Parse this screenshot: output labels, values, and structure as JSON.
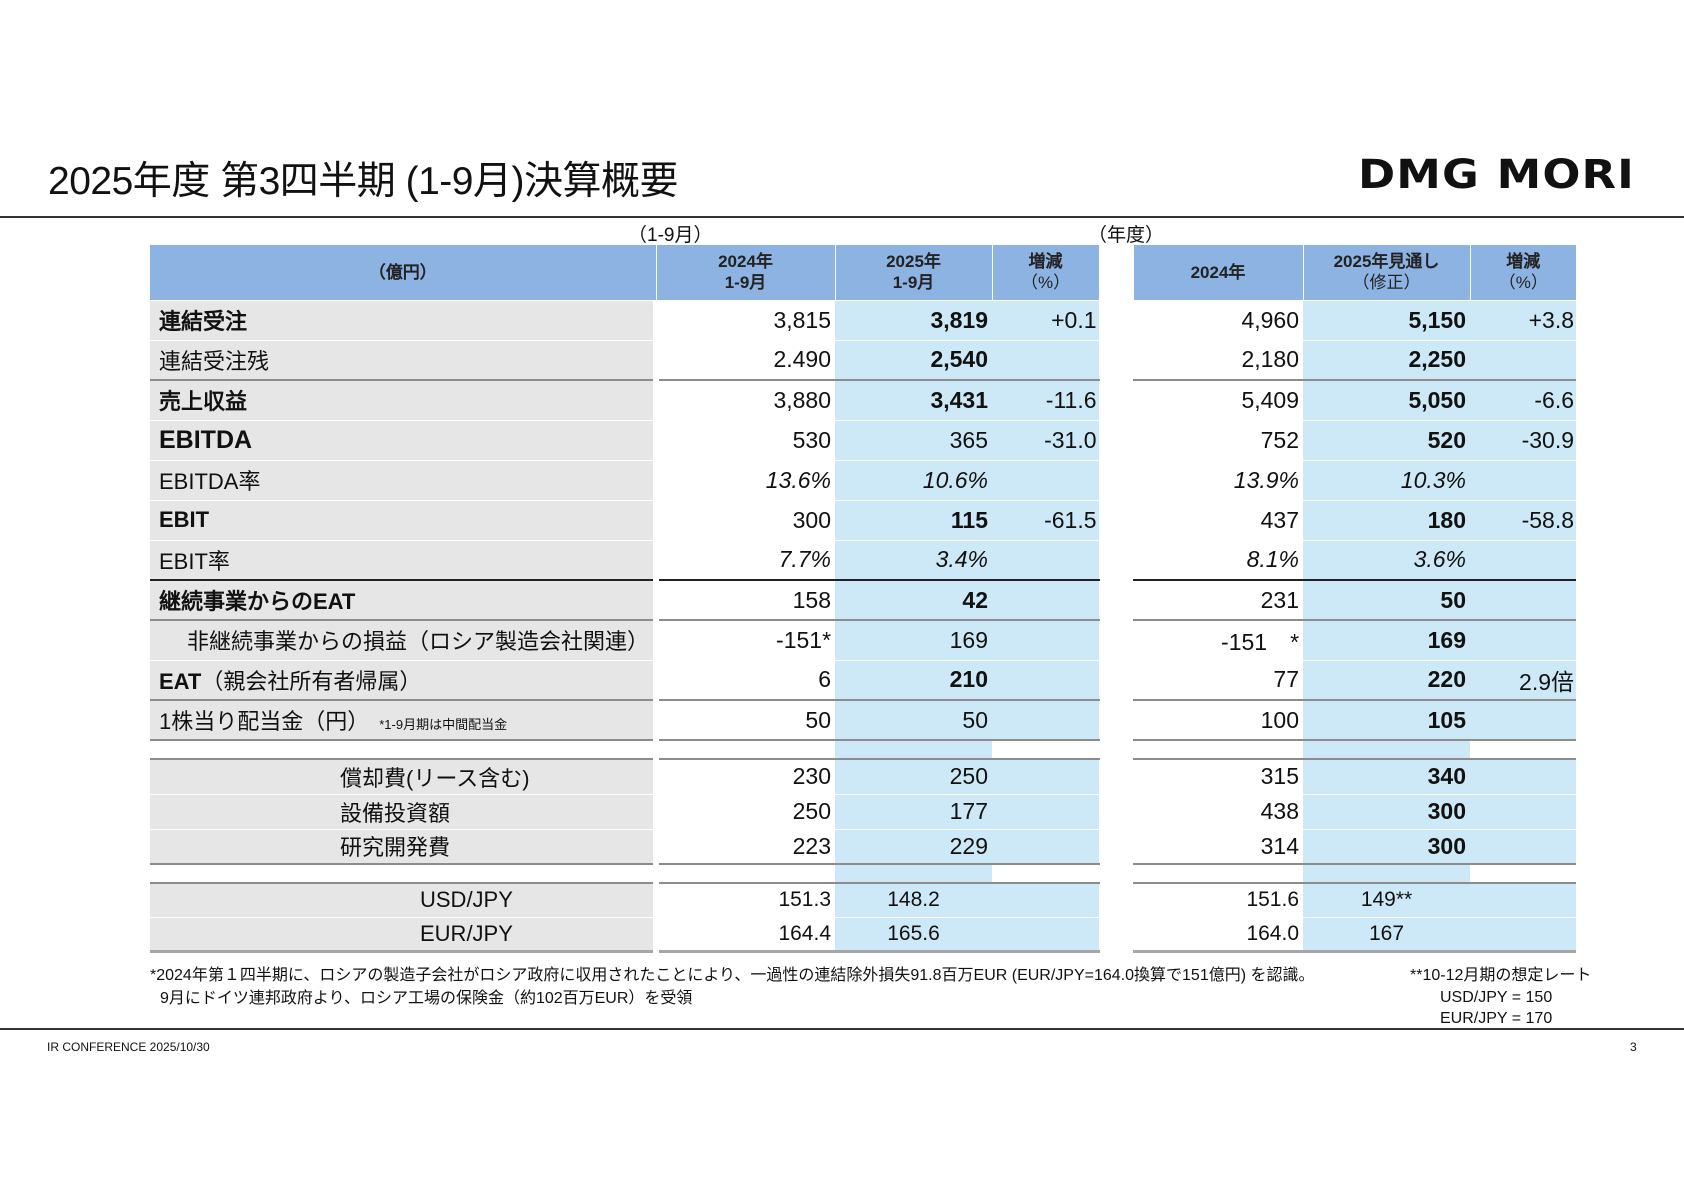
{
  "title": "2025年度 第3四半期 (1-9月)決算概要",
  "logo": "DMG MORI",
  "period_left": "（1-9月）",
  "period_right": "（年度）",
  "headers": {
    "unit": "（億円）",
    "l1": [
      "2024年",
      "1-9月"
    ],
    "l2": [
      "2025年",
      "1-9月"
    ],
    "l3": [
      "増減",
      "（%）"
    ],
    "r1": [
      "2024年"
    ],
    "r2": [
      "2025年見通し",
      "（修正）"
    ],
    "r3": [
      "増減",
      "（%）"
    ]
  },
  "rows": [
    {
      "label": "連結受注",
      "lstyle": "bold",
      "vals": [
        "3,815",
        "3,819",
        "+0.1",
        "4,960",
        "5,150",
        "+3.8"
      ],
      "fmt": [
        "",
        "b",
        "",
        "",
        "b",
        ""
      ]
    },
    {
      "label": "連結受注残",
      "lstyle": "",
      "vals": [
        "2.490",
        "2,540",
        "",
        "2,180",
        "2,250",
        ""
      ],
      "fmt": [
        "",
        "b",
        "",
        "",
        "b",
        ""
      ]
    },
    {
      "label": "売上収益",
      "lstyle": "bold",
      "top": "gray",
      "vals": [
        "3,880",
        "3,431",
        "-11.6",
        "5,409",
        "5,050",
        "-6.6"
      ],
      "fmt": [
        "",
        "b",
        "",
        "",
        "b",
        ""
      ]
    },
    {
      "label": "EBITDA",
      "lstyle": "big",
      "vals": [
        "530",
        "365",
        "-31.0",
        "752",
        "520",
        "-30.9"
      ],
      "fmt": [
        "",
        "",
        "",
        "",
        "b",
        ""
      ]
    },
    {
      "label": "EBITDA率",
      "lstyle": "",
      "vals": [
        "13.6%",
        "10.6%",
        "",
        "13.9%",
        "10.3%",
        ""
      ],
      "fmt": [
        "i",
        "i",
        "",
        "i",
        "i",
        ""
      ]
    },
    {
      "label": "EBIT",
      "lstyle": "bold",
      "vals": [
        "300",
        "115",
        "-61.5",
        "437",
        "180",
        "-58.8"
      ],
      "fmt": [
        "",
        "b",
        "",
        "",
        "b",
        ""
      ]
    },
    {
      "label": "EBIT率",
      "lstyle": "",
      "vals": [
        "7.7%",
        "3.4%",
        "",
        "8.1%",
        "3.6%",
        ""
      ],
      "fmt": [
        "i",
        "i",
        "",
        "i",
        "i",
        ""
      ]
    },
    {
      "label": "継続事業からのEAT",
      "lstyle": "bold",
      "top": "black",
      "vals": [
        "158",
        "42",
        "",
        "231",
        "50",
        ""
      ],
      "fmt": [
        "",
        "b",
        "",
        "",
        "b",
        ""
      ]
    },
    {
      "label": "非継続事業からの損益（ロシア製造会社関連）",
      "lstyle": "indent",
      "top": "gray",
      "vals": [
        "-151*",
        "169",
        "",
        "-151　*",
        "169",
        ""
      ],
      "fmt": [
        "",
        "",
        "",
        "",
        "b",
        ""
      ]
    },
    {
      "label": "EAT",
      "label_suffix": "（親会社所有者帰属）",
      "lstyle": "boldprefix",
      "vals": [
        "6",
        "210",
        "",
        "77",
        "220",
        "2.9倍"
      ],
      "fmt": [
        "",
        "b",
        "",
        "",
        "b",
        ""
      ]
    },
    {
      "label": "1株当り配当金（円）",
      "note": "*1-9月期は中間配当金",
      "lstyle": "",
      "top": "gray",
      "vals": [
        "50",
        "50",
        "",
        "100",
        "105",
        ""
      ],
      "fmt": [
        "",
        "",
        "",
        "",
        "b",
        ""
      ]
    }
  ],
  "rows2": [
    {
      "label": "償却費(リース含む)",
      "vals": [
        "230",
        "250",
        "",
        "315",
        "340",
        ""
      ],
      "fmt": [
        "",
        "",
        "",
        "",
        "b",
        ""
      ]
    },
    {
      "label": "設備投資額",
      "vals": [
        "250",
        "177",
        "",
        "438",
        "300",
        ""
      ],
      "fmt": [
        "",
        "",
        "",
        "",
        "b",
        ""
      ]
    },
    {
      "label": "研究開発費",
      "vals": [
        "223",
        "229",
        "",
        "314",
        "300",
        ""
      ],
      "fmt": [
        "",
        "",
        "",
        "",
        "b",
        ""
      ]
    }
  ],
  "rows3": [
    {
      "label": "USD/JPY",
      "vals": [
        "151.3",
        "148.2",
        "",
        "151.6",
        "149**",
        ""
      ]
    },
    {
      "label": "EUR/JPY",
      "vals": [
        "164.4",
        "165.6",
        "",
        "164.0",
        "167",
        ""
      ]
    }
  ],
  "footnote1": "*2024年第１四半期に、ロシアの製造子会社がロシア政府に収用されたことにより、一過性の連結除外損失91.8百万EUR (EUR/JPY=164.0換算で151億円) を認識。",
  "footnote2": "9月にドイツ連邦政府より、ロシア工場の保険金（約102百万EUR）を受領",
  "rate_note": [
    "**10-12月期の想定レート",
    "USD/JPY = 150",
    "EUR/JPY = 170"
  ],
  "footer_left": "IR CONFERENCE 2025/10/30",
  "page_number": "3"
}
